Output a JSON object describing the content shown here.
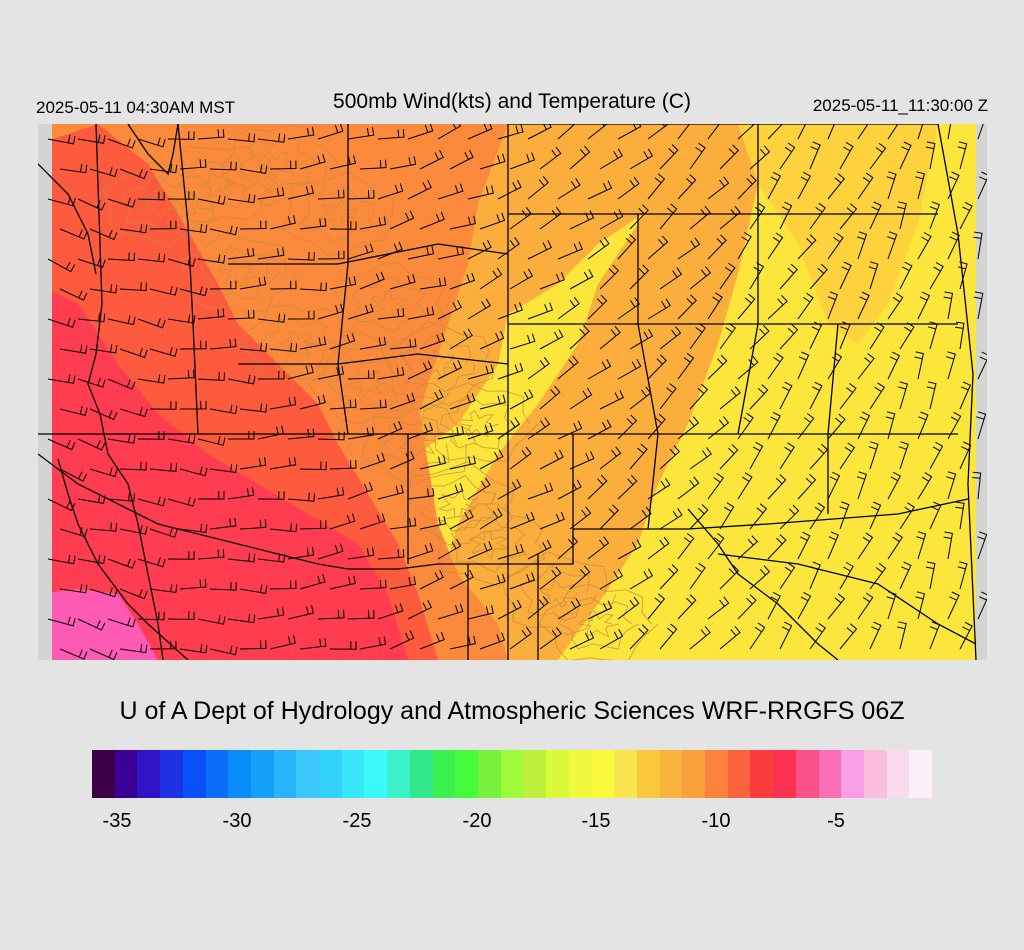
{
  "header": {
    "local_time": "2025-05-11 04:30AM MST",
    "title": "500mb Wind(kts) and Temperature (C)",
    "valid_time": "2025-05-11_11:30:00 Z"
  },
  "footer": {
    "credit": "U of A Dept of Hydrology and Atmospheric Sciences WRF-RRGFS 06Z"
  },
  "map": {
    "field": "500mb temperature (C) with wind barbs (kts)",
    "background_color": "#d4d4d4",
    "temperature_color_regions": [
      "#ff3c50",
      "#fd5a3e",
      "#fb8a3c",
      "#fbae3c",
      "#fdd23c",
      "#fde63c",
      "#ff5ab4"
    ]
  },
  "colorbar": {
    "colors": [
      "#3c0046",
      "#3c0096",
      "#3214c8",
      "#1e32e6",
      "#0a50fa",
      "#0a6efa",
      "#0a8cfa",
      "#14a0fa",
      "#28b4fa",
      "#3cc8fa",
      "#32d2fa",
      "#3ce6fa",
      "#3cfafa",
      "#3cf0c8",
      "#32e68c",
      "#3cf050",
      "#46fa3c",
      "#78f03c",
      "#a0fa3c",
      "#bef03c",
      "#dcfa3c",
      "#f0fa3c",
      "#fafa3c",
      "#fae650",
      "#fac83c",
      "#fab43c",
      "#faa03c",
      "#fa823c",
      "#fa643c",
      "#fa3c3c",
      "#fa3250",
      "#fa508c",
      "#fa6eb4",
      "#fa9ee6",
      "#fabedc",
      "#fadcf0",
      "#fef0fa"
    ],
    "tick_labels": [
      "-35",
      "-30",
      "-25",
      "-20",
      "-15",
      "-10",
      "-5"
    ]
  }
}
